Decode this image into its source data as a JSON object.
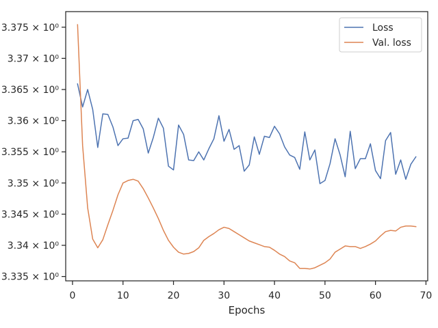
{
  "chart_data": {
    "type": "line",
    "title": "",
    "xlabel": "Epochs",
    "ylabel": "",
    "xlim": [
      -1.35,
      70.35
    ],
    "ylim": [
      3.3343,
      3.3775
    ],
    "xticks": [
      0,
      10,
      20,
      30,
      40,
      50,
      60,
      70
    ],
    "xtick_labels": [
      "0",
      "10",
      "20",
      "30",
      "40",
      "50",
      "60",
      "70"
    ],
    "yticks": [
      3.335,
      3.34,
      3.345,
      3.35,
      3.355,
      3.36,
      3.365,
      3.37,
      3.375
    ],
    "ytick_labels": [
      "3.335 × 10⁰",
      "3.34 × 10⁰",
      "3.345 × 10⁰",
      "3.35 × 10⁰",
      "3.355 × 10⁰",
      "3.36 × 10⁰",
      "3.365 × 10⁰",
      "3.37 × 10⁰",
      "3.375 × 10⁰"
    ],
    "grid": false,
    "legend_position": "top-right",
    "colors": {
      "Loss": "#4c72b0",
      "Val. loss": "#dd8452"
    },
    "x": [
      1,
      2,
      3,
      4,
      5,
      6,
      7,
      8,
      9,
      10,
      11,
      12,
      13,
      14,
      15,
      16,
      17,
      18,
      19,
      20,
      21,
      22,
      23,
      24,
      25,
      26,
      27,
      28,
      29,
      30,
      31,
      32,
      33,
      34,
      35,
      36,
      37,
      38,
      39,
      40,
      41,
      42,
      43,
      44,
      45,
      46,
      47,
      48,
      49,
      50,
      51,
      52,
      53,
      54,
      55,
      56,
      57,
      58,
      59,
      60,
      61,
      62,
      63,
      64,
      65,
      66,
      67,
      68
    ],
    "series": [
      {
        "name": "Loss",
        "values": [
          3.3659,
          3.3622,
          3.365,
          3.3618,
          3.3557,
          3.3611,
          3.361,
          3.359,
          3.356,
          3.3571,
          3.3572,
          3.36,
          3.3602,
          3.3587,
          3.3548,
          3.3573,
          3.3604,
          3.3588,
          3.3527,
          3.3521,
          3.3593,
          3.3578,
          3.3537,
          3.3536,
          3.355,
          3.3537,
          3.3555,
          3.3571,
          3.3608,
          3.3567,
          3.3586,
          3.3554,
          3.356,
          3.3519,
          3.3529,
          3.3574,
          3.3546,
          3.3575,
          3.3573,
          3.3591,
          3.3579,
          3.3558,
          3.3545,
          3.3541,
          3.3522,
          3.3582,
          3.3537,
          3.3553,
          3.3499,
          3.3504,
          3.3531,
          3.3571,
          3.3545,
          3.351,
          3.3583,
          3.3523,
          3.3539,
          3.3539,
          3.3563,
          3.352,
          3.3507,
          3.3568,
          3.3581,
          3.3514,
          3.3537,
          3.3506,
          3.353,
          3.3542
        ]
      },
      {
        "name": "Val. loss",
        "values": [
          3.3754,
          3.356,
          3.346,
          3.341,
          3.3396,
          3.3409,
          3.3433,
          3.3456,
          3.3481,
          3.35,
          3.3504,
          3.3506,
          3.3503,
          3.3491,
          3.3476,
          3.346,
          3.3443,
          3.3424,
          3.3408,
          3.3397,
          3.3389,
          3.3386,
          3.3387,
          3.339,
          3.3396,
          3.3408,
          3.3414,
          3.3419,
          3.3425,
          3.3429,
          3.3427,
          3.3422,
          3.3417,
          3.3412,
          3.3407,
          3.3404,
          3.3401,
          3.3398,
          3.3397,
          3.3392,
          3.3386,
          3.3382,
          3.3375,
          3.3372,
          3.3363,
          3.3363,
          3.3362,
          3.3364,
          3.3368,
          3.3372,
          3.3378,
          3.3389,
          3.3394,
          3.3399,
          3.3398,
          3.3398,
          3.3395,
          3.3398,
          3.3402,
          3.3407,
          3.3415,
          3.3422,
          3.3424,
          3.3423,
          3.3429,
          3.3431,
          3.3431,
          3.343
        ]
      }
    ]
  }
}
